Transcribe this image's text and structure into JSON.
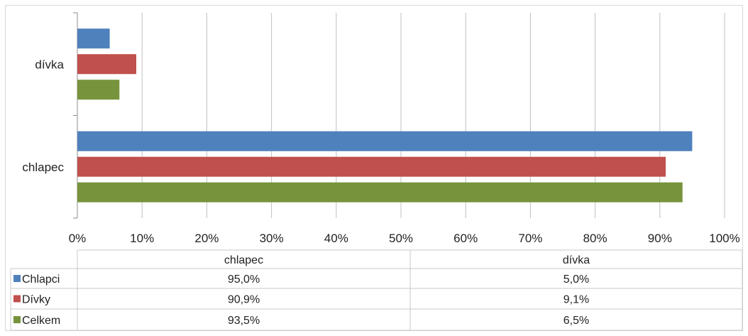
{
  "chart_data": {
    "type": "bar",
    "orientation": "horizontal",
    "categories": [
      "dívka",
      "chlapec"
    ],
    "series": [
      {
        "name": "Chlapci",
        "color": "#4f81bd",
        "values": [
          5.0,
          95.0
        ],
        "labels": [
          "5,0%",
          "95,0%"
        ]
      },
      {
        "name": "Dívky",
        "color": "#c0504d",
        "values": [
          9.1,
          90.9
        ],
        "labels": [
          "9,1%",
          "90,9%"
        ]
      },
      {
        "name": "Celkem",
        "color": "#77933c",
        "values": [
          6.5,
          93.5
        ],
        "labels": [
          "6,5%",
          "93,5%"
        ]
      }
    ],
    "xlim": [
      0,
      100
    ],
    "xticks": [
      "0%",
      "10%",
      "20%",
      "30%",
      "40%",
      "50%",
      "60%",
      "70%",
      "80%",
      "90%",
      "100%"
    ],
    "grid": true,
    "data_table": {
      "columns": [
        "chlapec",
        "dívka"
      ]
    }
  }
}
